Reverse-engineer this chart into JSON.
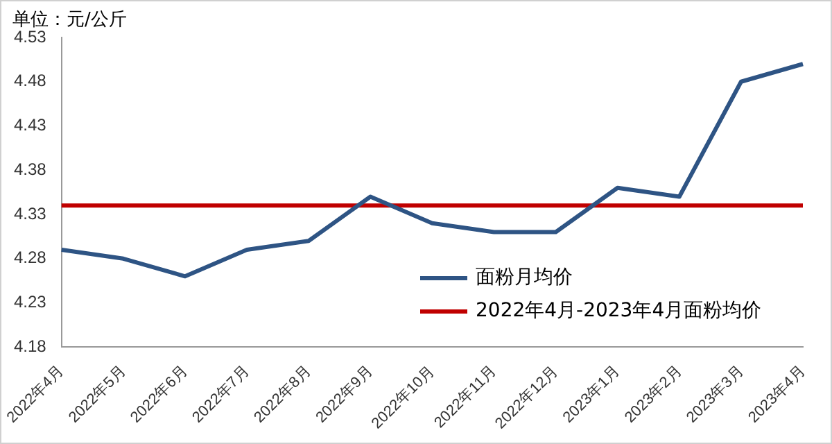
{
  "chart_data": {
    "type": "line",
    "ylabel": "单位：元/公斤",
    "categories": [
      "2022年4月",
      "2022年5月",
      "2022年6月",
      "2022年7月",
      "2022年8月",
      "2022年9月",
      "2022年10月",
      "2022年11月",
      "2022年12月",
      "2023年1月",
      "2023年2月",
      "2023年3月",
      "2023年4月"
    ],
    "series": [
      {
        "name": "面粉月均价",
        "color": "#2e5484",
        "values": [
          4.29,
          4.28,
          4.26,
          4.29,
          4.3,
          4.35,
          4.32,
          4.31,
          4.31,
          4.36,
          4.35,
          4.48,
          4.5
        ]
      },
      {
        "name": "2022年4月-2023年4月面粉均价",
        "color": "#c00000",
        "values": [
          4.34,
          4.34,
          4.34,
          4.34,
          4.34,
          4.34,
          4.34,
          4.34,
          4.34,
          4.34,
          4.34,
          4.34,
          4.34
        ]
      }
    ],
    "ylim": [
      4.18,
      4.53
    ],
    "yticks": [
      4.18,
      4.23,
      4.28,
      4.33,
      4.38,
      4.43,
      4.48,
      4.53
    ],
    "grid": false,
    "legend": "bottom right",
    "marker": "none",
    "line_style": "solid"
  }
}
